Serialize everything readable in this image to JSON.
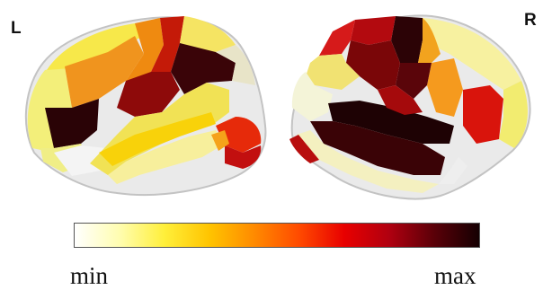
{
  "figure": {
    "left_hemisphere_label": "L",
    "right_hemisphere_label": "R",
    "colorbar": {
      "min_label": "min",
      "max_label": "max",
      "colors": [
        "#ffffff",
        "#fffdb0",
        "#ffef3a",
        "#ffc400",
        "#ff8a00",
        "#ff4a00",
        "#e80000",
        "#b00010",
        "#5a0008",
        "#150002"
      ]
    }
  }
}
